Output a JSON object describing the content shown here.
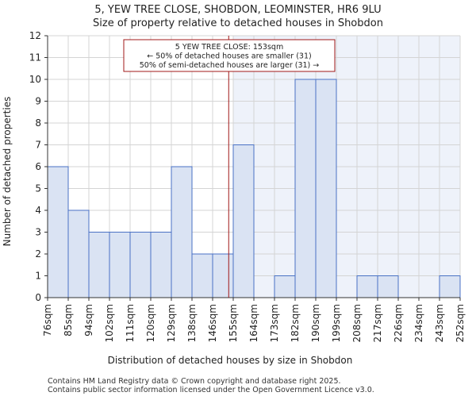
{
  "chart_data": {
    "type": "bar",
    "title": "5, YEW TREE CLOSE, SHOBDON, LEOMINSTER, HR6 9LU",
    "subtitle": "Size of property relative to detached houses in Shobdon",
    "xlabel": "Distribution of detached houses by size in Shobdon",
    "ylabel": "Number of detached properties",
    "ylim": [
      0,
      12
    ],
    "yticks": [
      0,
      1,
      2,
      3,
      4,
      5,
      6,
      7,
      8,
      9,
      10,
      11,
      12
    ],
    "bin_edges": [
      "76sqm",
      "85sqm",
      "94sqm",
      "102sqm",
      "111sqm",
      "120sqm",
      "129sqm",
      "138sqm",
      "146sqm",
      "155sqm",
      "164sqm",
      "173sqm",
      "182sqm",
      "190sqm",
      "199sqm",
      "208sqm",
      "217sqm",
      "226sqm",
      "234sqm",
      "243sqm",
      "252sqm"
    ],
    "values": [
      6,
      4,
      3,
      3,
      3,
      3,
      6,
      2,
      2,
      7,
      0,
      1,
      10,
      10,
      0,
      1,
      1,
      0,
      0,
      1
    ],
    "highlight_from_bin": 9,
    "marker": {
      "value_sqm": 153,
      "bin_index": 8,
      "bin_fraction": 0.78,
      "label_lines": [
        "5 YEW TREE CLOSE: 153sqm",
        "← 50% of detached houses are smaller (31)",
        "50% of semi-detached houses are larger (31) →"
      ]
    },
    "grid": true,
    "colors": {
      "bar_fill": "#dae3f3",
      "bar_stroke": "#4a72c4",
      "highlight_bg": "#eef2fa",
      "marker": "#a01818",
      "grid": "#d4d4d4",
      "axis": "#333333"
    }
  },
  "footer": {
    "line1": "Contains HM Land Registry data © Crown copyright and database right 2025.",
    "line2": "Contains public sector information licensed under the Open Government Licence v3.0."
  }
}
